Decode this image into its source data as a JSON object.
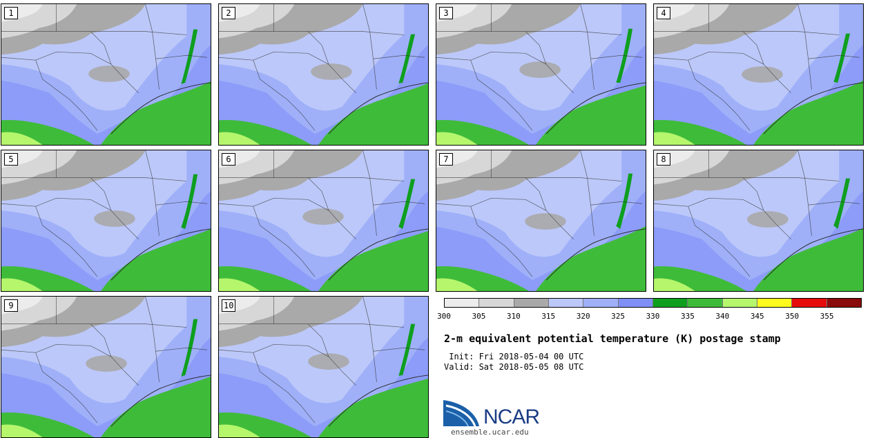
{
  "panels": [
    {
      "label": "1"
    },
    {
      "label": "2"
    },
    {
      "label": "3"
    },
    {
      "label": "4"
    },
    {
      "label": "5"
    },
    {
      "label": "6"
    },
    {
      "label": "7"
    },
    {
      "label": "8"
    },
    {
      "label": "9"
    },
    {
      "label": "10"
    }
  ],
  "colorbar": {
    "ticks": [
      "300",
      "305",
      "310",
      "315",
      "320",
      "325",
      "330",
      "335",
      "340",
      "345",
      "350",
      "355"
    ],
    "colors": [
      "#ececec",
      "#d7d7d7",
      "#a9a9a9",
      "#bcc8f9",
      "#9fb0f9",
      "#7f8ff6",
      "#0f9f1f",
      "#3fbb3a",
      "#b5f66c",
      "#fdfb1d",
      "#e60c0c",
      "#8a0b0b"
    ]
  },
  "title": "2-m equivalent potential temperature (K) postage stamp",
  "init_line": " Init: Fri 2018-05-04 00 UTC",
  "valid_line": "Valid: Sat 2018-05-05 08 UTC",
  "logo": {
    "text": "NCAR",
    "url": "ensemble.ucar.edu",
    "color": "#1a3c84"
  }
}
